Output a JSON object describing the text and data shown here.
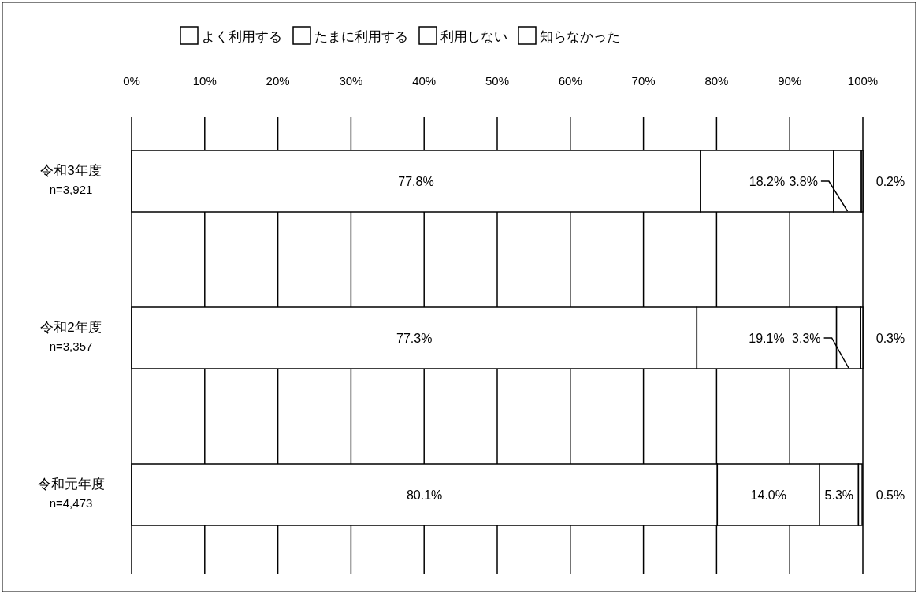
{
  "chart_data": {
    "type": "bar",
    "orientation": "horizontal",
    "stacked": true,
    "categories": [
      "令和3年度\nn=3,921",
      "令和2年度\nn=3,357",
      "令和元年度\nn=4,473"
    ],
    "series": [
      {
        "name": "よく利用する",
        "color": "#ffffff",
        "values": [
          77.8,
          77.3,
          80.1
        ]
      },
      {
        "name": "たまに利用する",
        "color": "#ffffff",
        "values": [
          18.2,
          19.1,
          14.0
        ]
      },
      {
        "name": "利用しない",
        "color": "#ffffff",
        "values": [
          3.8,
          3.3,
          5.3
        ]
      },
      {
        "name": "知らなかった",
        "color": "#ffffff",
        "values": [
          0.2,
          0.3,
          0.5
        ]
      }
    ],
    "value_labels": [
      [
        "77.8%",
        "77.3%",
        "80.1%"
      ],
      [
        "18.2%",
        "19.1%",
        "14.0%"
      ],
      [
        "3.8%",
        "3.3%",
        "5.3%"
      ],
      [
        "0.2%",
        "0.3%",
        "0.5%"
      ]
    ],
    "xlim": [
      0,
      100
    ],
    "xticks": [
      {
        "value": 0,
        "label": "0%"
      },
      {
        "value": 10,
        "label": "10%"
      },
      {
        "value": 20,
        "label": "20%"
      },
      {
        "value": 30,
        "label": "30%"
      },
      {
        "value": 40,
        "label": "40%"
      },
      {
        "value": 50,
        "label": "50%"
      },
      {
        "value": 60,
        "label": "60%"
      },
      {
        "value": 70,
        "label": "70%"
      },
      {
        "value": 80,
        "label": "80%"
      },
      {
        "value": 90,
        "label": "90%"
      },
      {
        "value": 100,
        "label": "100%"
      }
    ],
    "grid": "x",
    "legend": "top"
  }
}
